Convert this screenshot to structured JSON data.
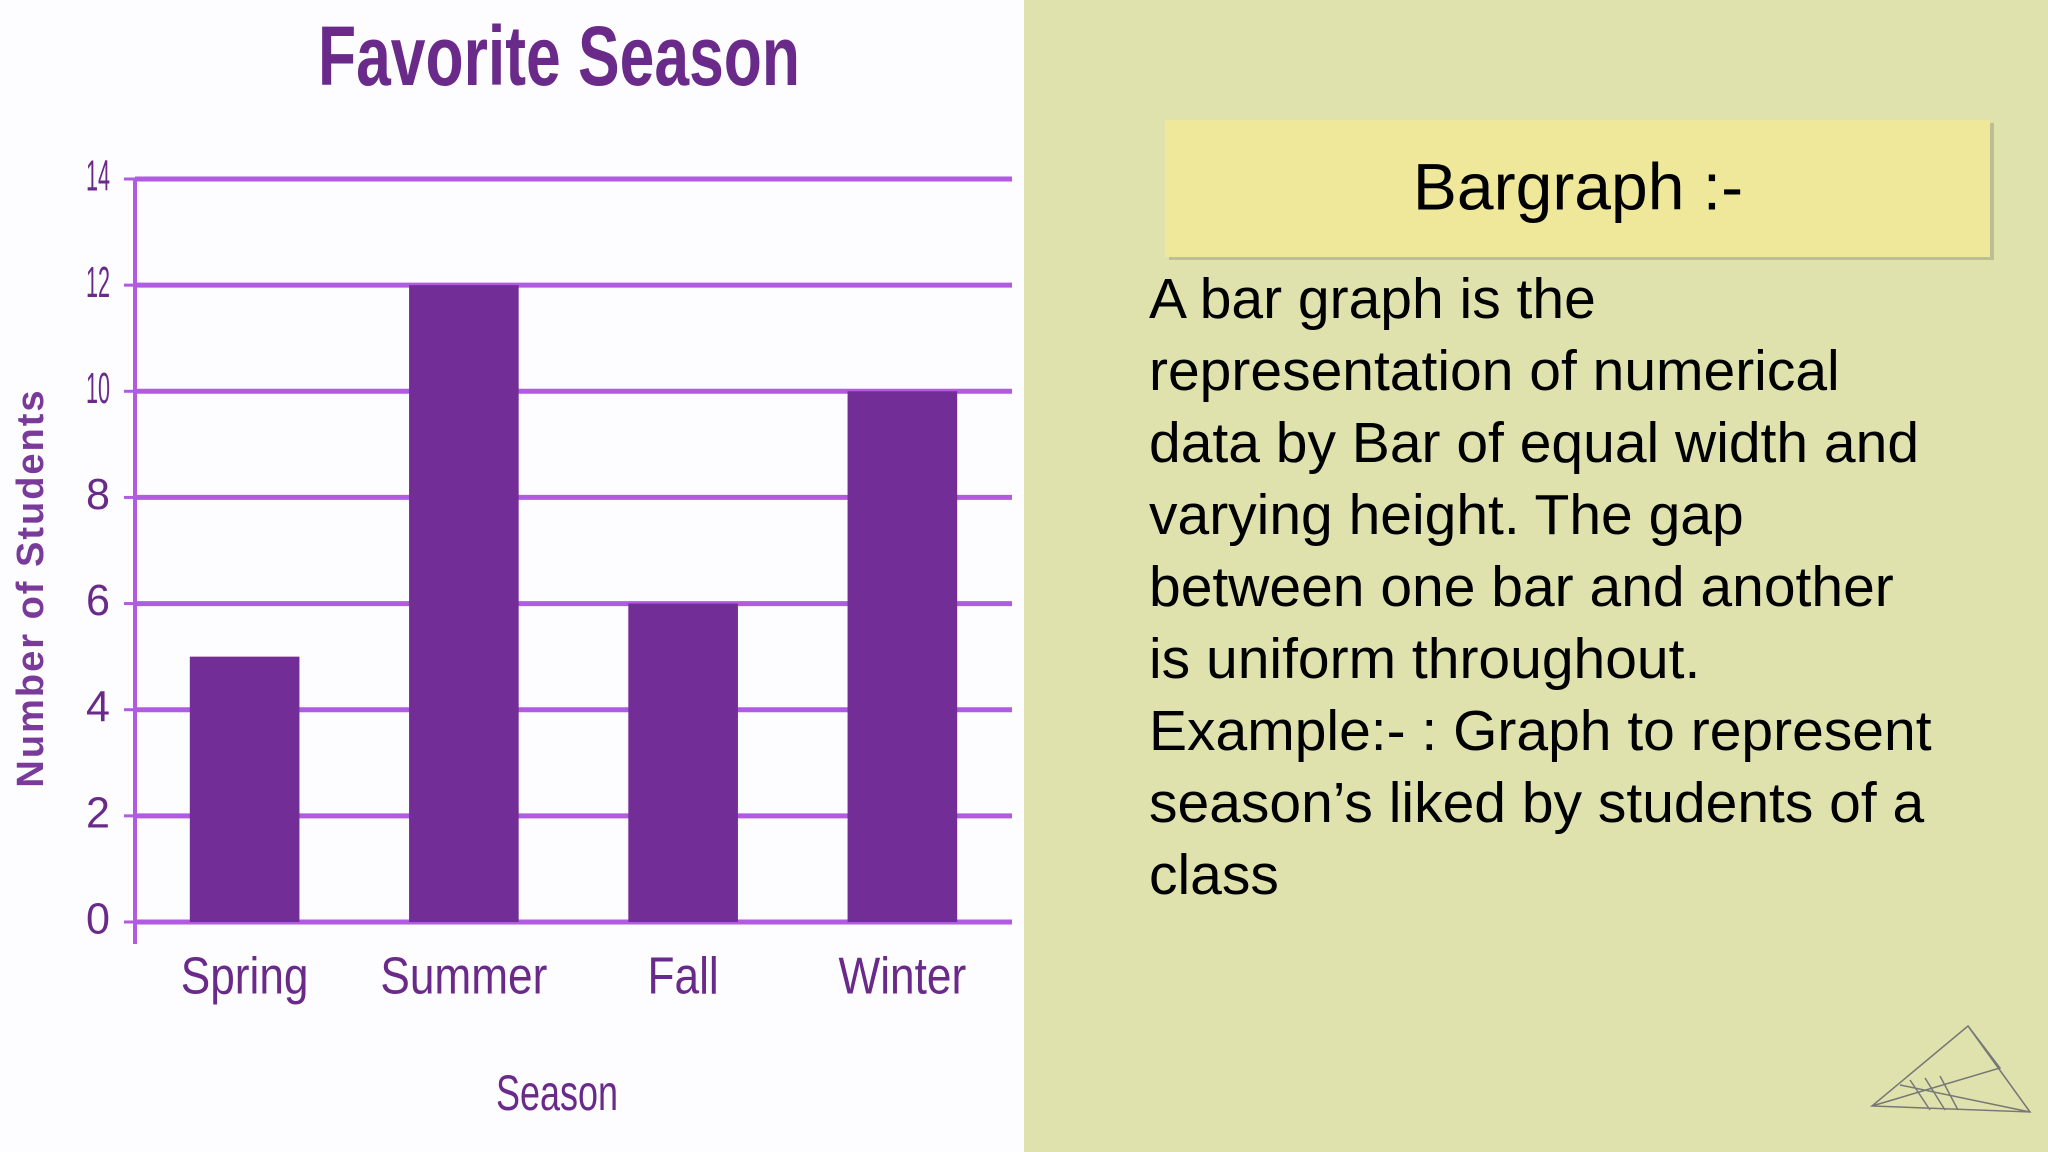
{
  "chart_data": {
    "type": "bar",
    "title": "Favorite Season",
    "categories": [
      "Spring",
      "Summer",
      "Fall",
      "Winter"
    ],
    "values": [
      5,
      12,
      6,
      10
    ],
    "color": "#722e96",
    "x_label": "Season",
    "y_label": "Number of Students",
    "ylim": [
      0,
      14
    ],
    "yticks": [
      0,
      2,
      4,
      6,
      8,
      10,
      12,
      14
    ],
    "grid": true
  },
  "panel": {
    "heading": "Bargraph :-",
    "lines": [
      "A bar graph is the",
      "representation of numerical",
      "data by Bar of equal width and",
      "varying height. The gap",
      "between one bar and another",
      "is uniform throughout.",
      "Example:- : Graph to represent",
      "season’s liked by students of a",
      "class"
    ]
  }
}
